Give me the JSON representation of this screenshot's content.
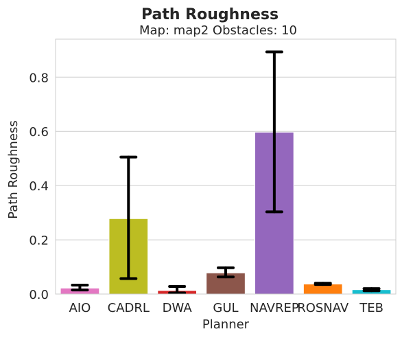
{
  "chart_data": {
    "type": "bar",
    "title": "Path Roughness",
    "subtitle": "Map: map2 Obstacles: 10",
    "xlabel": "Planner",
    "ylabel": "Path Roughness",
    "ylim": [
      0,
      0.94
    ],
    "yticks": [
      "0.0",
      "0.2",
      "0.4",
      "0.6",
      "0.8"
    ],
    "grid": true,
    "categories": [
      "AIO",
      "CADRL",
      "DWA",
      "GUL",
      "NAVREP",
      "ROSNAV",
      "TEB"
    ],
    "values": [
      0.022,
      0.278,
      0.013,
      0.078,
      0.597,
      0.037,
      0.016
    ],
    "error_low": [
      0.015,
      0.057,
      0.004,
      0.063,
      0.303,
      0.035,
      0.012
    ],
    "error_high": [
      0.033,
      0.505,
      0.028,
      0.097,
      0.893,
      0.04,
      0.02
    ],
    "colors": [
      "#e377c2",
      "#bcbd22",
      "#d62728",
      "#8c564b",
      "#9467bd",
      "#ff7f0e",
      "#17becf"
    ]
  }
}
